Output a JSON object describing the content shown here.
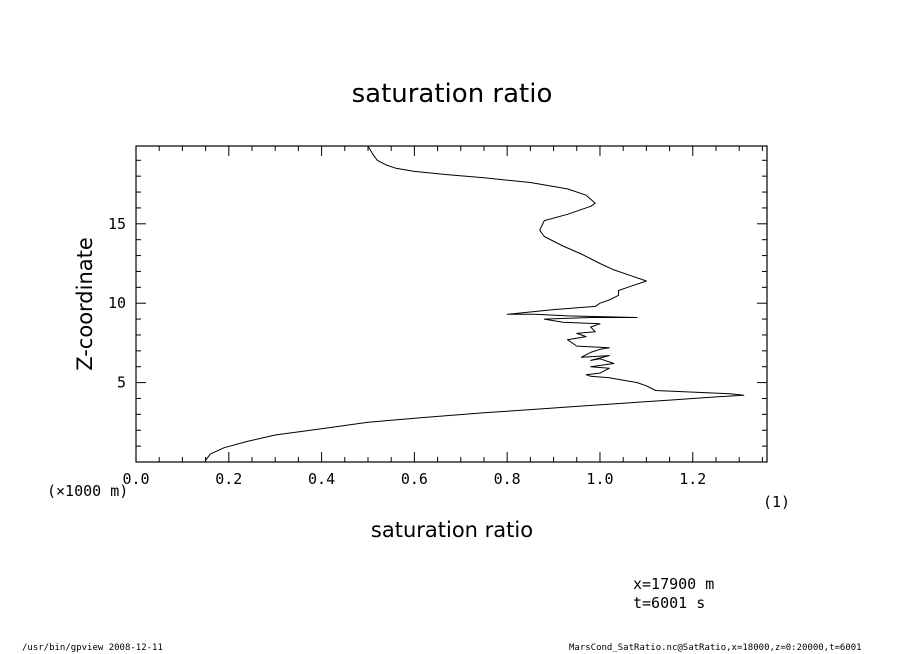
{
  "chart_data": {
    "type": "line",
    "title": "saturation ratio",
    "xlabel": "saturation ratio",
    "ylabel": "Z-coordinate",
    "y_unit_label": "(×1000 m)",
    "x_unit_label": "(1)",
    "xlim": [
      0.0,
      1.36
    ],
    "ylim": [
      0.0,
      19.9
    ],
    "x_ticks": [
      "0.0",
      "0.2",
      "0.4",
      "0.6",
      "0.8",
      "1.0",
      "1.2"
    ],
    "x_tick_values": [
      0.0,
      0.2,
      0.4,
      0.6,
      0.8,
      1.0,
      1.2
    ],
    "y_ticks": [
      "5",
      "10",
      "15"
    ],
    "y_tick_values": [
      5,
      10,
      15
    ],
    "grid": false,
    "series": [
      {
        "x": [
          0.15,
          0.16,
          0.19,
          0.24,
          0.3,
          0.4,
          0.5,
          0.62,
          0.75,
          0.85,
          0.95,
          1.05,
          1.15,
          1.25,
          1.31,
          1.28,
          1.2,
          1.12,
          1.1,
          1.08,
          1.06,
          1.04,
          1.02,
          1.0,
          0.98,
          0.97,
          1.0,
          1.02,
          0.98,
          1.03,
          1.0,
          0.98,
          1.02,
          0.96,
          0.98,
          1.0,
          1.02,
          0.95,
          0.93,
          0.97,
          0.95,
          0.99,
          0.98,
          1.0,
          0.92,
          0.88,
          0.98,
          1.08,
          0.93,
          0.86,
          0.8,
          0.9,
          0.99,
          1.0,
          1.02,
          1.04,
          1.04,
          1.06,
          1.1,
          1.07,
          1.03,
          1.0,
          0.96,
          0.92,
          0.88,
          0.87,
          0.88,
          0.93,
          0.98,
          0.99,
          0.97,
          0.93,
          0.85,
          0.75,
          0.67,
          0.6,
          0.56,
          0.54,
          0.52,
          0.51,
          0.5
        ],
        "y": [
          0.1,
          0.5,
          0.9,
          1.3,
          1.7,
          2.1,
          2.5,
          2.8,
          3.1,
          3.3,
          3.5,
          3.7,
          3.9,
          4.1,
          4.2,
          4.3,
          4.4,
          4.5,
          4.8,
          5.0,
          5.1,
          5.2,
          5.3,
          5.35,
          5.4,
          5.5,
          5.6,
          5.9,
          6.0,
          6.2,
          6.5,
          6.4,
          6.7,
          6.6,
          6.9,
          7.1,
          7.2,
          7.3,
          7.7,
          7.9,
          8.1,
          8.2,
          8.5,
          8.7,
          8.8,
          9.0,
          9.1,
          9.1,
          9.2,
          9.3,
          9.3,
          9.6,
          9.8,
          10.0,
          10.2,
          10.5,
          10.8,
          11.0,
          11.4,
          11.7,
          12.1,
          12.5,
          13.1,
          13.6,
          14.2,
          14.6,
          15.2,
          15.6,
          16.1,
          16.3,
          16.8,
          17.2,
          17.6,
          17.9,
          18.1,
          18.3,
          18.5,
          18.7,
          19.0,
          19.4,
          19.9
        ]
      }
    ]
  },
  "annotations": {
    "x_position": "x=17900 m",
    "time": "t=6001 s"
  },
  "footer": {
    "left": "/usr/bin/gpview   2008-12-11",
    "right": "MarsCond_SatRatio.nc@SatRatio,x=18000,z=0:20000,t=6001"
  }
}
